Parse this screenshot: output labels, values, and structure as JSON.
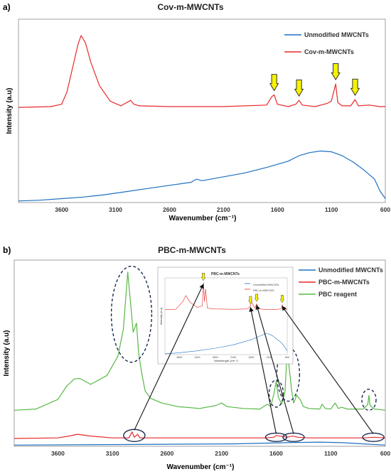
{
  "figure": {
    "colors": {
      "unmodified": "#1f70c1",
      "modified": "#e82a2a",
      "reagent": "#58b846",
      "arrow_fill": "#f6f200",
      "annotation": "#1a2a4f"
    }
  },
  "chart_data": [
    {
      "type": "line",
      "panel": "a)",
      "title": "Cov-m-MWCNTs",
      "xlabel": "Wavenumber (cm⁻¹)",
      "ylabel": "Intensity (a.u)",
      "xlim": [
        4000,
        600
      ],
      "x_reversed": true,
      "xticks": [
        3600,
        3100,
        2600,
        2100,
        1600,
        1100,
        600
      ],
      "grid": false,
      "legend_position": "top-right",
      "series": [
        {
          "name": "Unmodified MWCNTs",
          "color": "#1f70c1",
          "x": [
            4000,
            3800,
            3600,
            3400,
            3200,
            3000,
            2800,
            2600,
            2400,
            2350,
            2300,
            2100,
            1900,
            1700,
            1500,
            1400,
            1300,
            1200,
            1100,
            1000,
            900,
            800,
            700,
            650,
            600
          ],
          "y": [
            0.02,
            0.03,
            0.05,
            0.07,
            0.1,
            0.14,
            0.18,
            0.22,
            0.26,
            0.3,
            0.28,
            0.33,
            0.38,
            0.45,
            0.53,
            0.6,
            0.64,
            0.66,
            0.65,
            0.6,
            0.52,
            0.42,
            0.3,
            0.15,
            0.05
          ]
        },
        {
          "name": "Cov-m-MWCNTs",
          "color": "#e82a2a",
          "x": [
            4000,
            3700,
            3600,
            3550,
            3500,
            3450,
            3420,
            3380,
            3330,
            3250,
            3150,
            3050,
            2960,
            2930,
            2880,
            2600,
            2100,
            1700,
            1650,
            1630,
            1600,
            1500,
            1430,
            1400,
            1370,
            1250,
            1140,
            1100,
            1060,
            1040,
            1000,
            920,
            880,
            850,
            750,
            650,
            600
          ],
          "y": [
            1.22,
            1.23,
            1.26,
            1.42,
            1.72,
            2.02,
            2.14,
            2.05,
            1.8,
            1.5,
            1.3,
            1.24,
            1.31,
            1.26,
            1.24,
            1.23,
            1.23,
            1.25,
            1.36,
            1.38,
            1.26,
            1.23,
            1.26,
            1.31,
            1.25,
            1.23,
            1.27,
            1.3,
            1.52,
            1.28,
            1.24,
            1.24,
            1.32,
            1.24,
            1.25,
            1.23,
            1.23
          ]
        }
      ],
      "annotations": [
        {
          "shape": "arrow",
          "x": 1630
        },
        {
          "shape": "arrow",
          "x": 1400
        },
        {
          "shape": "arrow",
          "x": 1060
        },
        {
          "shape": "arrow",
          "x": 880
        }
      ]
    },
    {
      "type": "line",
      "panel": "b)",
      "title": "PBC-m-MWCNTs",
      "xlabel": "Wavenumber (cm⁻¹)",
      "ylabel": "Intensity (a.u)",
      "xlim": [
        4000,
        600
      ],
      "x_reversed": true,
      "xticks": [
        3600,
        3100,
        2600,
        2100,
        1600,
        1100,
        600
      ],
      "grid": false,
      "legend_position": "top-right",
      "series": [
        {
          "name": "Unmodified MWCNTs",
          "color": "#1f70c1",
          "x": [
            4000,
            3000,
            2000,
            1500,
            1200,
            1000,
            800,
            600
          ],
          "y": [
            0.02,
            0.03,
            0.04,
            0.06,
            0.07,
            0.06,
            0.04,
            0.02
          ]
        },
        {
          "name": "PBC-m-MWCNTs",
          "color": "#e82a2a",
          "x": [
            4000,
            3600,
            3500,
            3420,
            3300,
            3100,
            2950,
            2920,
            2900,
            2870,
            2850,
            2820,
            2600,
            2000,
            1700,
            1620,
            1600,
            1500,
            1450,
            1400,
            1300,
            1000,
            800,
            700,
            600
          ],
          "y": [
            0.13,
            0.14,
            0.17,
            0.2,
            0.17,
            0.14,
            0.14,
            0.24,
            0.15,
            0.2,
            0.14,
            0.14,
            0.14,
            0.14,
            0.14,
            0.15,
            0.18,
            0.15,
            0.17,
            0.15,
            0.14,
            0.14,
            0.14,
            0.15,
            0.14
          ]
        },
        {
          "name": "PBC reagent",
          "color": "#58b846",
          "x": [
            4000,
            3800,
            3600,
            3520,
            3450,
            3400,
            3300,
            3150,
            3050,
            3000,
            2960,
            2930,
            2910,
            2880,
            2860,
            2830,
            2800,
            2750,
            2650,
            2500,
            2300,
            2150,
            2100,
            2050,
            1900,
            1750,
            1680,
            1650,
            1620,
            1600,
            1580,
            1550,
            1520,
            1500,
            1480,
            1460,
            1440,
            1410,
            1380,
            1350,
            1300,
            1200,
            1180,
            1150,
            1100,
            1060,
            1030,
            1000,
            950,
            900,
            800,
            760,
            750,
            740,
            700,
            650,
            600
          ],
          "y": [
            0.6,
            0.62,
            0.78,
            1.0,
            1.12,
            1.13,
            1.03,
            1.18,
            1.5,
            1.95,
            2.9,
            2.3,
            1.9,
            2.05,
            1.55,
            1.2,
            0.92,
            0.8,
            0.72,
            0.66,
            0.63,
            0.68,
            0.72,
            0.66,
            0.63,
            0.62,
            0.7,
            0.66,
            0.88,
            1.08,
            0.82,
            0.7,
            0.9,
            1.55,
            1.3,
            0.95,
            0.72,
            0.85,
            0.78,
            0.66,
            0.63,
            0.62,
            0.7,
            0.63,
            0.62,
            0.72,
            0.63,
            0.65,
            0.62,
            0.62,
            0.62,
            0.7,
            0.85,
            0.68,
            0.62,
            0.61,
            0.6
          ]
        }
      ],
      "annotations": [
        {
          "shape": "dashed-ellipse",
          "x": 2925,
          "y_range": [
            1.4,
            3.0
          ]
        },
        {
          "shape": "dashed-ellipse",
          "x": 1600,
          "y_range": [
            0.65,
            1.1
          ]
        },
        {
          "shape": "dashed-ellipse",
          "x": 1490,
          "y_range": [
            0.75,
            1.65
          ]
        },
        {
          "shape": "dashed-ellipse",
          "x": 750,
          "y_range": [
            0.6,
            0.95
          ]
        },
        {
          "shape": "solid-ellipse",
          "x": 2900,
          "y_range": [
            0.08,
            0.28
          ]
        },
        {
          "shape": "solid-ellipse",
          "x": 1600,
          "y_range": [
            0.08,
            0.22
          ]
        },
        {
          "shape": "solid-ellipse",
          "x": 1440,
          "y_range": [
            0.08,
            0.22
          ]
        },
        {
          "shape": "solid-ellipse",
          "x": 710,
          "y_range": [
            0.08,
            0.22
          ]
        }
      ],
      "inset": {
        "title": "PBC-m-MWCNTs",
        "xlabel": "Wavelength (cm⁻¹)",
        "ylabel": "Intensity (a.u)",
        "xlim": [
          4000,
          600
        ],
        "xticks": [
          3600,
          3100,
          2600,
          2100,
          1600,
          1100,
          600
        ],
        "series": [
          {
            "name": "Unmodified MWCNTs",
            "color": "#1f70c1",
            "x": [
              4000,
              3600,
              3100,
              2600,
              2100,
              1600,
              1300,
              1200,
              1100,
              1000,
              900,
              800,
              700,
              600
            ],
            "y": [
              0.02,
              0.05,
              0.1,
              0.17,
              0.26,
              0.4,
              0.52,
              0.56,
              0.55,
              0.5,
              0.42,
              0.35,
              0.25,
              0.1
            ]
          },
          {
            "name": "PBC-m-MWCNTs",
            "color": "#e82a2a",
            "x": [
              4000,
              3700,
              3500,
              3420,
              3300,
              3100,
              2960,
              2930,
              2900,
              2870,
              2820,
              2600,
              2100,
              1700,
              1620,
              1600,
              1500,
              1450,
              1400,
              1200,
              900,
              760,
              740,
              700,
              600
            ],
            "y": [
              1.2,
              1.21,
              1.42,
              1.58,
              1.4,
              1.26,
              1.3,
              1.92,
              1.42,
              1.75,
              1.24,
              1.22,
              1.21,
              1.22,
              1.3,
              1.42,
              1.24,
              1.36,
              1.22,
              1.21,
              1.21,
              1.22,
              1.33,
              1.22,
              1.21
            ]
          }
        ],
        "annotations": [
          {
            "shape": "arrow",
            "x": 2930
          },
          {
            "shape": "arrow",
            "x": 1620
          },
          {
            "shape": "arrow",
            "x": 1450
          },
          {
            "shape": "arrow",
            "x": 740
          }
        ]
      }
    }
  ]
}
